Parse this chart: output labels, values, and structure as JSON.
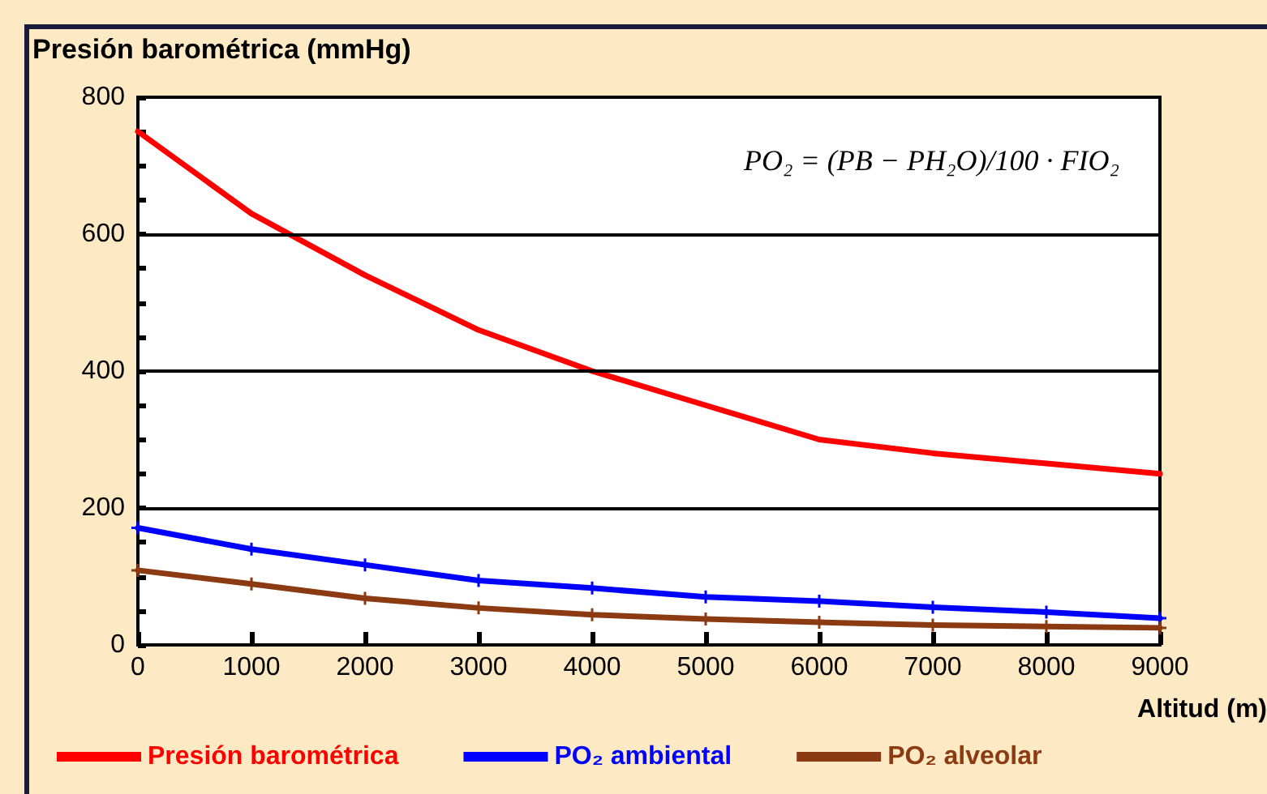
{
  "chart_data": {
    "type": "line",
    "ylabel": "Presión barométrica (mmHg)",
    "xlabel": "Altitud (m)",
    "x": [
      0,
      1000,
      2000,
      3000,
      4000,
      5000,
      6000,
      7000,
      8000,
      9000
    ],
    "xlim": [
      0,
      9000
    ],
    "xticks": [
      0,
      1000,
      2000,
      3000,
      4000,
      5000,
      6000,
      7000,
      8000,
      9000
    ],
    "ylim": [
      0,
      800
    ],
    "yticks": [
      0,
      {
        "value": 50,
        "label": null
      },
      {
        "value": 100,
        "label": null
      },
      {
        "value": 150,
        "label": null
      },
      200,
      {
        "value": 250,
        "label": null
      },
      {
        "value": 300,
        "label": null
      },
      {
        "value": 350,
        "label": null
      },
      400,
      {
        "value": 450,
        "label": null
      },
      {
        "value": 500,
        "label": null
      },
      {
        "value": 550,
        "label": null
      },
      600,
      {
        "value": 650,
        "label": null
      },
      {
        "value": 700,
        "label": null
      },
      {
        "value": 750,
        "label": null
      },
      800
    ],
    "grid": "y",
    "legend": "bottom",
    "line_style": "solid",
    "series": [
      {
        "name": "Presión barométrica",
        "color": "#ff0000",
        "marker": "none",
        "values": [
          750,
          630,
          540,
          460,
          400,
          350,
          300,
          280,
          265,
          250
        ]
      },
      {
        "name": "PO₂ ambiental",
        "color": "#0000ff",
        "marker": "cross",
        "values": [
          171,
          140,
          117,
          94,
          83,
          70,
          64,
          55,
          48,
          39
        ]
      },
      {
        "name": "PO₂ alveolar",
        "color": "#8b3a12",
        "marker": "cross",
        "values": [
          109,
          89,
          68,
          54,
          44,
          38,
          33,
          29,
          27,
          25
        ]
      }
    ],
    "annotations": [
      "PO₂ = (PB − PH₂O)/100 · FIO₂"
    ]
  }
}
